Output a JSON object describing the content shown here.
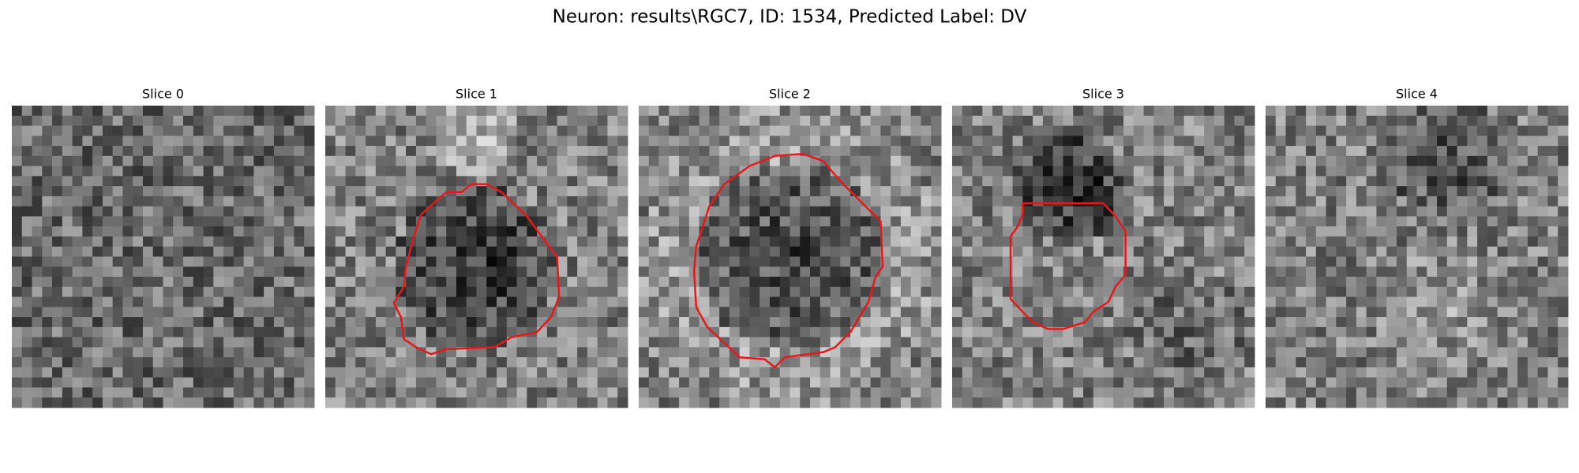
{
  "title": "Neuron: results\\RGC7, ID: 1534, Predicted Label: DV",
  "panels": [
    {
      "title": "Slice 0"
    },
    {
      "title": "Slice 1"
    },
    {
      "title": "Slice 2"
    },
    {
      "title": "Slice 3"
    },
    {
      "title": "Slice 4"
    }
  ]
}
